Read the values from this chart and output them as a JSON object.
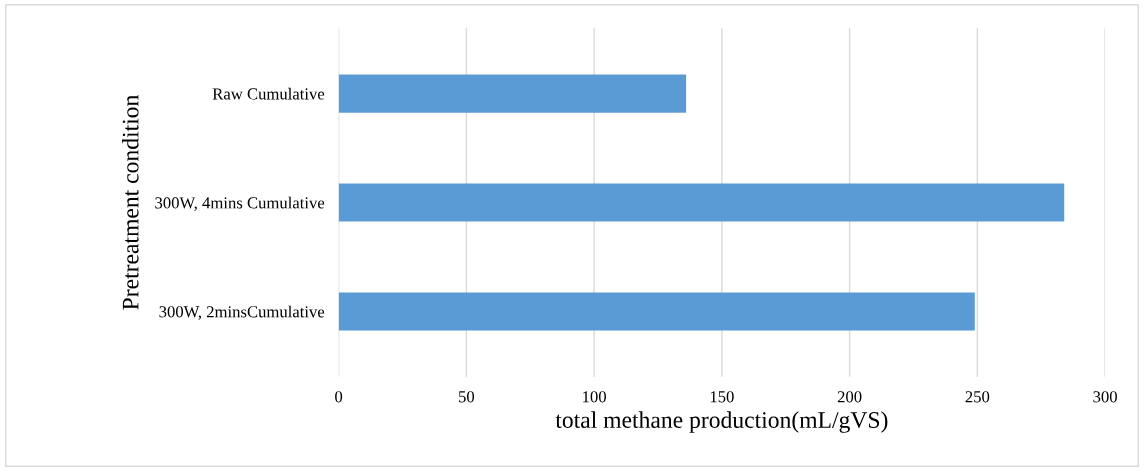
{
  "chart_data": {
    "type": "bar",
    "orientation": "horizontal",
    "categories": [
      "Raw Cumulative",
      "300W, 4mins Cumulative",
      "300W, 2minsCumulative"
    ],
    "values": [
      136,
      284,
      249
    ],
    "color": "#5b9bd5",
    "xlim": [
      0,
      300
    ],
    "xticks": [
      0,
      50,
      100,
      150,
      200,
      250,
      300
    ],
    "grid": "x",
    "xlabel": "total methane production(mL/gVS)",
    "ylabel": "Pretreatment condition"
  }
}
